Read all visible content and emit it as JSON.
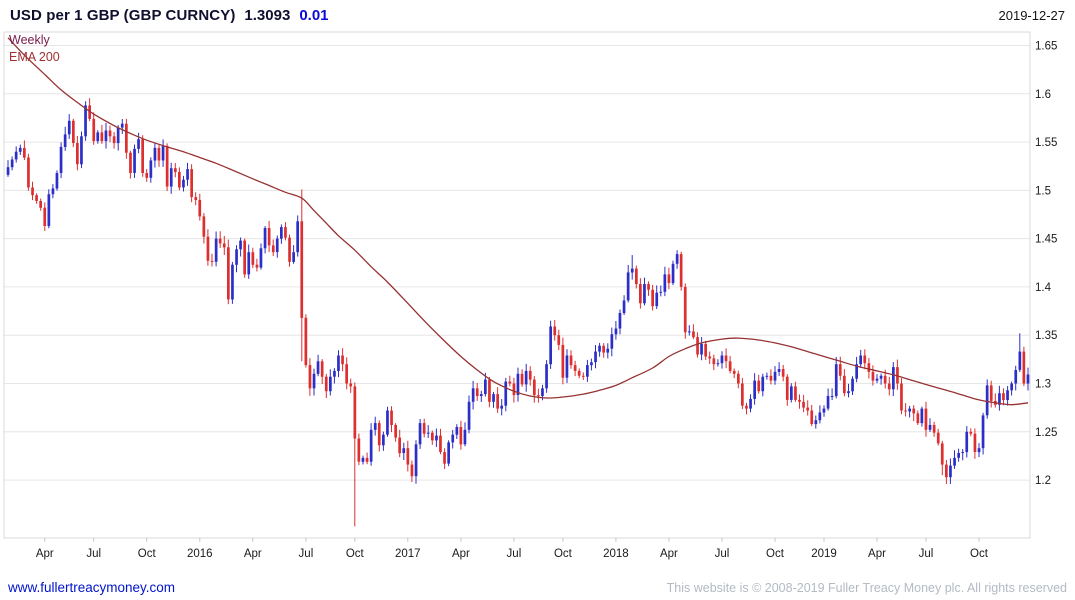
{
  "header": {
    "title": "USD per 1 GBP (GBP CURNCY)",
    "price": "1.3093",
    "change": "0.01",
    "date": "2019-12-27"
  },
  "footer": {
    "link": "www.fullertreacymoney.com",
    "copyright": "This website is © 2008-2019 Fuller Treacy Money plc. All rights reserved"
  },
  "colors": {
    "up": "#2b2fc8",
    "down": "#dd2f2f",
    "ema": "#963232",
    "grid": "#e6e6e6",
    "border": "#d9d9d9",
    "axis_text": "#1a1a1a",
    "tick": "#c8c8c8"
  },
  "chart_data": {
    "type": "candlestick",
    "instrument": "USD per 1 GBP (GBP CURNCY)",
    "timeframe_label": "Weekly",
    "overlay_label": "EMA 200",
    "last": 1.3093,
    "change": 0.01,
    "as_of": "2019-12-27",
    "ylim": [
      1.14,
      1.664
    ],
    "y_ticks": [
      {
        "value": 1.65,
        "label": "1.65"
      },
      {
        "value": 1.6,
        "label": "1.6"
      },
      {
        "value": 1.55,
        "label": "1.55"
      },
      {
        "value": 1.5,
        "label": "1.5"
      },
      {
        "value": 1.45,
        "label": "1.45"
      },
      {
        "value": 1.4,
        "label": "1.4"
      },
      {
        "value": 1.35,
        "label": "1.35"
      },
      {
        "value": 1.3,
        "label": "1.3"
      },
      {
        "value": 1.25,
        "label": "1.25"
      },
      {
        "value": 1.2,
        "label": "1.2"
      }
    ],
    "x_ticks": [
      {
        "label": "Apr",
        "week": 9
      },
      {
        "label": "Jul",
        "week": 21
      },
      {
        "label": "Oct",
        "week": 34
      },
      {
        "label": "2016",
        "week": 47
      },
      {
        "label": "Apr",
        "week": 60
      },
      {
        "label": "Jul",
        "week": 73
      },
      {
        "label": "Oct",
        "week": 85
      },
      {
        "label": "2017",
        "week": 98
      },
      {
        "label": "Apr",
        "week": 111
      },
      {
        "label": "Jul",
        "week": 124
      },
      {
        "label": "Oct",
        "week": 136
      },
      {
        "label": "2018",
        "week": 149
      },
      {
        "label": "Apr",
        "week": 162
      },
      {
        "label": "Jul",
        "week": 175
      },
      {
        "label": "Oct",
        "week": 188
      },
      {
        "label": "2019",
        "week": 200
      },
      {
        "label": "Apr",
        "week": 213
      },
      {
        "label": "Jul",
        "week": 225
      },
      {
        "label": "Oct",
        "week": 238
      }
    ],
    "start_open": 1.516,
    "weekly_closes": [
      1.524,
      1.532,
      1.54,
      1.544,
      1.534,
      1.503,
      1.495,
      1.489,
      1.482,
      1.463,
      1.496,
      1.502,
      1.518,
      1.545,
      1.558,
      1.572,
      1.549,
      1.527,
      1.556,
      1.588,
      1.574,
      1.551,
      1.56,
      1.551,
      1.562,
      1.556,
      1.549,
      1.565,
      1.569,
      1.539,
      1.518,
      1.543,
      1.553,
      1.518,
      1.513,
      1.531,
      1.544,
      1.531,
      1.546,
      1.504,
      1.523,
      1.519,
      1.503,
      1.511,
      1.522,
      1.493,
      1.49,
      1.473,
      1.452,
      1.427,
      1.426,
      1.45,
      1.445,
      1.441,
      1.387,
      1.423,
      1.439,
      1.448,
      1.413,
      1.436,
      1.423,
      1.42,
      1.44,
      1.461,
      1.443,
      1.436,
      1.45,
      1.462,
      1.451,
      1.426,
      1.436,
      1.468,
      1.368,
      1.319,
      1.295,
      1.31,
      1.323,
      1.307,
      1.292,
      1.307,
      1.313,
      1.329,
      1.32,
      1.3,
      1.297,
      1.243,
      1.219,
      1.223,
      1.219,
      1.252,
      1.259,
      1.236,
      1.247,
      1.272,
      1.257,
      1.244,
      1.228,
      1.233,
      1.216,
      1.204,
      1.237,
      1.259,
      1.248,
      1.249,
      1.241,
      1.246,
      1.229,
      1.217,
      1.239,
      1.247,
      1.255,
      1.237,
      1.252,
      1.281,
      1.295,
      1.287,
      1.289,
      1.304,
      1.281,
      1.289,
      1.274,
      1.277,
      1.302,
      1.3,
      1.288,
      1.31,
      1.299,
      1.313,
      1.304,
      1.288,
      1.287,
      1.295,
      1.32,
      1.359,
      1.35,
      1.34,
      1.306,
      1.329,
      1.319,
      1.313,
      1.308,
      1.307,
      1.319,
      1.322,
      1.333,
      1.339,
      1.332,
      1.336,
      1.351,
      1.357,
      1.373,
      1.386,
      1.415,
      1.419,
      1.403,
      1.383,
      1.403,
      1.397,
      1.38,
      1.394,
      1.395,
      1.413,
      1.404,
      1.424,
      1.434,
      1.4,
      1.353,
      1.354,
      1.348,
      1.33,
      1.341,
      1.328,
      1.326,
      1.32,
      1.321,
      1.329,
      1.323,
      1.313,
      1.31,
      1.3,
      1.277,
      1.274,
      1.284,
      1.303,
      1.292,
      1.307,
      1.308,
      1.303,
      1.312,
      1.315,
      1.307,
      1.283,
      1.297,
      1.283,
      1.281,
      1.275,
      1.272,
      1.258,
      1.262,
      1.27,
      1.274,
      1.287,
      1.287,
      1.32,
      1.308,
      1.29,
      1.292,
      1.305,
      1.32,
      1.329,
      1.321,
      1.312,
      1.303,
      1.305,
      1.308,
      1.3,
      1.294,
      1.317,
      1.3,
      1.272,
      1.271,
      1.274,
      1.269,
      1.259,
      1.274,
      1.252,
      1.257,
      1.249,
      1.238,
      1.216,
      1.203,
      1.215,
      1.223,
      1.228,
      1.229,
      1.25,
      1.248,
      1.229,
      1.233,
      1.267,
      1.298,
      1.282,
      1.278,
      1.29,
      1.283,
      1.293,
      1.3,
      1.314,
      1.333,
      1.3,
      1.3093
    ],
    "overrides": {
      "72": {
        "high": 1.501,
        "low": 1.323
      },
      "85": {
        "high": 1.301,
        "low": 1.152
      },
      "99": {
        "low": 1.198
      },
      "133": {
        "high": 1.365
      },
      "153": {
        "high": 1.433
      },
      "164": {
        "high": 1.438
      },
      "229": {
        "low": 1.205
      },
      "230": {
        "low": 1.196
      },
      "248": {
        "high": 1.352
      }
    },
    "ema_points": [
      [
        0,
        1.658
      ],
      [
        4,
        1.64
      ],
      [
        9,
        1.62
      ],
      [
        13,
        1.604
      ],
      [
        17,
        1.591
      ],
      [
        21,
        1.579
      ],
      [
        26,
        1.567
      ],
      [
        30,
        1.559
      ],
      [
        34,
        1.552
      ],
      [
        39,
        1.545
      ],
      [
        43,
        1.54
      ],
      [
        47,
        1.534
      ],
      [
        51,
        1.528
      ],
      [
        55,
        1.521
      ],
      [
        60,
        1.512
      ],
      [
        64,
        1.505
      ],
      [
        68,
        1.498
      ],
      [
        72,
        1.492
      ],
      [
        75,
        1.479
      ],
      [
        78,
        1.466
      ],
      [
        81,
        1.453
      ],
      [
        85,
        1.438
      ],
      [
        89,
        1.421
      ],
      [
        93,
        1.405
      ],
      [
        98,
        1.383
      ],
      [
        102,
        1.365
      ],
      [
        106,
        1.348
      ],
      [
        111,
        1.328
      ],
      [
        115,
        1.314
      ],
      [
        119,
        1.302
      ],
      [
        124,
        1.292
      ],
      [
        128,
        1.287
      ],
      [
        132,
        1.285
      ],
      [
        136,
        1.286
      ],
      [
        141,
        1.289
      ],
      [
        145,
        1.293
      ],
      [
        149,
        1.298
      ],
      [
        153,
        1.306
      ],
      [
        158,
        1.316
      ],
      [
        162,
        1.328
      ],
      [
        166,
        1.336
      ],
      [
        170,
        1.342
      ],
      [
        175,
        1.346
      ],
      [
        179,
        1.347
      ],
      [
        184,
        1.345
      ],
      [
        188,
        1.342
      ],
      [
        192,
        1.338
      ],
      [
        196,
        1.333
      ],
      [
        200,
        1.328
      ],
      [
        204,
        1.323
      ],
      [
        208,
        1.318
      ],
      [
        213,
        1.313
      ],
      [
        217,
        1.309
      ],
      [
        221,
        1.304
      ],
      [
        225,
        1.299
      ],
      [
        230,
        1.293
      ],
      [
        234,
        1.288
      ],
      [
        238,
        1.283
      ],
      [
        242,
        1.28
      ],
      [
        246,
        1.278
      ],
      [
        250,
        1.28
      ]
    ]
  }
}
